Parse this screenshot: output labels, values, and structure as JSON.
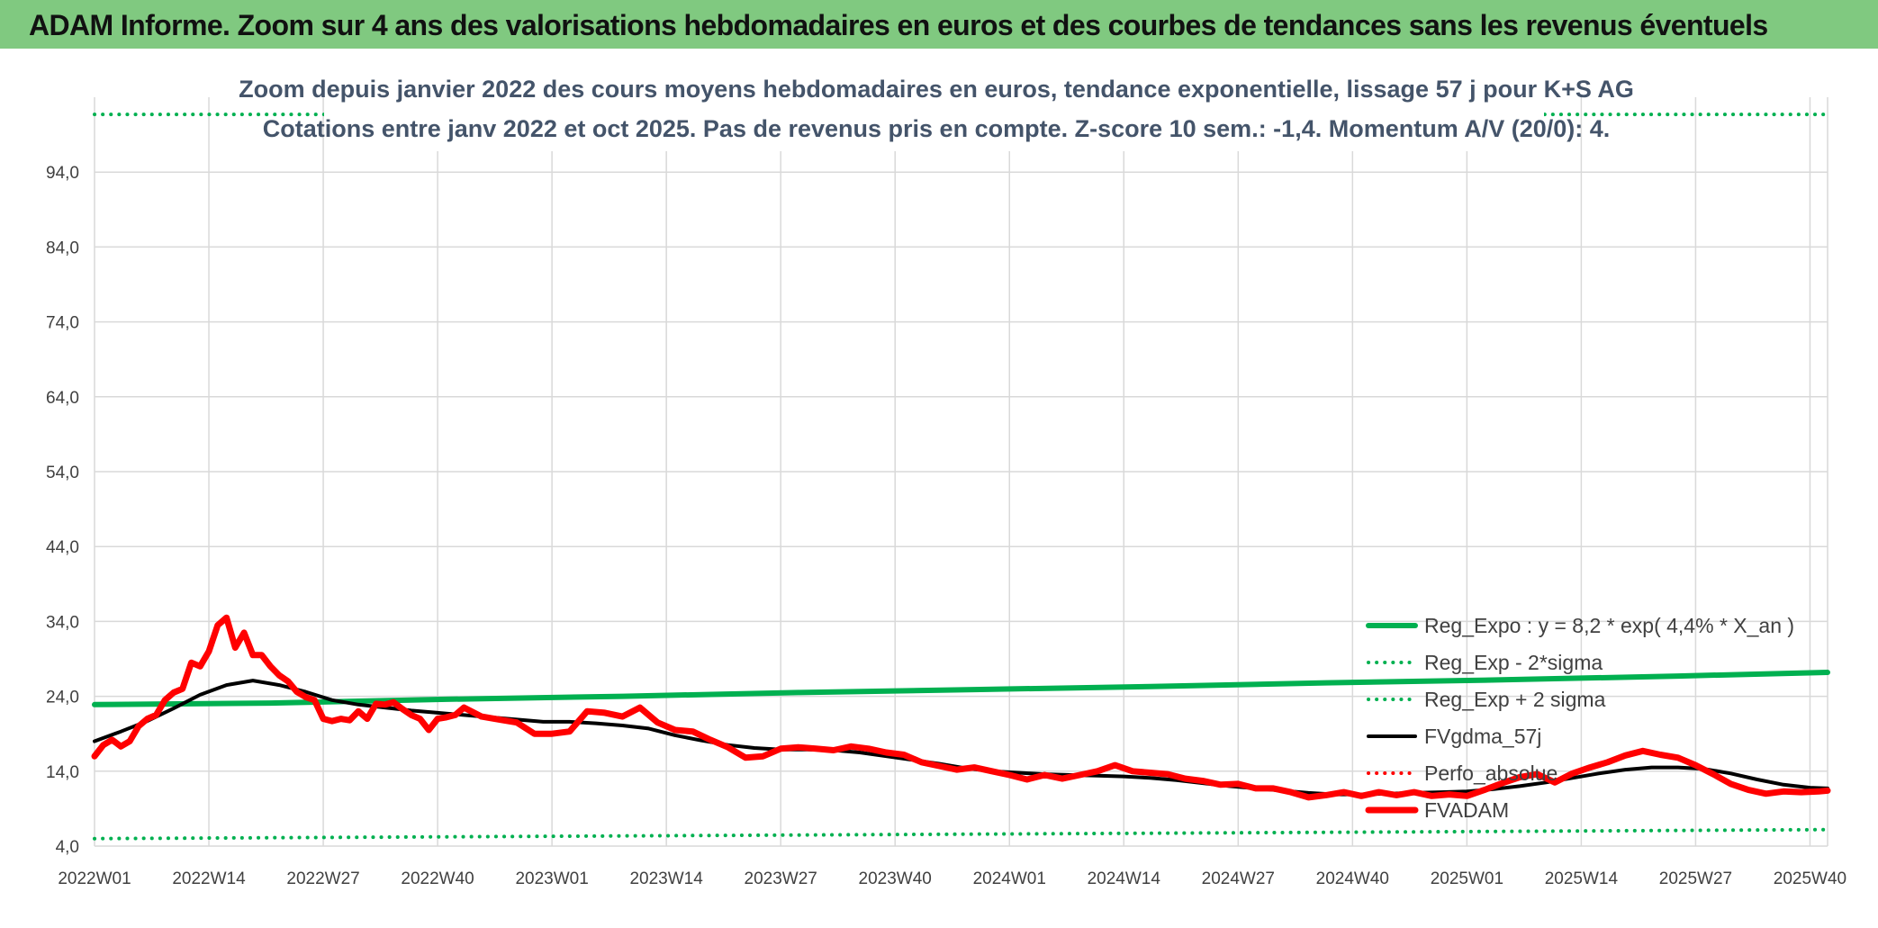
{
  "header": {
    "title": "ADAM Informe. Zoom sur 4 ans des valorisations hebdomadaires en euros et des courbes de tendances sans les revenus éventuels"
  },
  "colors": {
    "header_bg": "#80c980",
    "trend": "#00b050",
    "fvgdma": "#000000",
    "fvadam": "#ff0000",
    "perfo": "#ff0000",
    "grid": "#d9d9d9",
    "title_text": "#44546a"
  },
  "chart_data": {
    "type": "line",
    "title_line1": "Zoom depuis janvier 2022 des cours moyens hebdomadaires en euros, tendance exponentielle, lissage 57 j pour K+S AG",
    "title_line2": "Cotations entre janv 2022 et oct 2025. Pas de revenus pris en compte. Z-score 10 sem.: -1,4. Momentum A/V (20/0): 4.",
    "xlabel": "",
    "ylabel": "",
    "ylim": [
      4,
      104
    ],
    "yticks": [
      "94,0",
      "84,0",
      "74,0",
      "64,0",
      "54,0",
      "44,0",
      "34,0",
      "24,0",
      "14,0",
      "4,0"
    ],
    "ytick_values": [
      94,
      84,
      74,
      64,
      54,
      44,
      34,
      24,
      14,
      4
    ],
    "x_week_range": [
      0,
      197
    ],
    "xticks": [
      {
        "label": "2022W01",
        "week": 0
      },
      {
        "label": "2022W14",
        "week": 13
      },
      {
        "label": "2022W27",
        "week": 26
      },
      {
        "label": "2022W40",
        "week": 39
      },
      {
        "label": "2023W01",
        "week": 52
      },
      {
        "label": "2023W14",
        "week": 65
      },
      {
        "label": "2023W27",
        "week": 78
      },
      {
        "label": "2023W40",
        "week": 91
      },
      {
        "label": "2024W01",
        "week": 104
      },
      {
        "label": "2024W14",
        "week": 117
      },
      {
        "label": "2024W27",
        "week": 130
      },
      {
        "label": "2024W40",
        "week": 143
      },
      {
        "label": "2025W01",
        "week": 156
      },
      {
        "label": "2025W14",
        "week": 169
      },
      {
        "label": "2025W27",
        "week": 182
      },
      {
        "label": "2025W40",
        "week": 195
      }
    ],
    "series": [
      {
        "name": "Reg_Expo : y = 8,2 * exp( 4,4% *  X_an )",
        "style": "solid-thick",
        "color": "#00b050",
        "x": [
          0,
          20,
          40,
          60,
          80,
          100,
          120,
          140,
          160,
          180,
          197
        ],
        "values": [
          22.9,
          23.1,
          23.6,
          24.0,
          24.5,
          24.9,
          25.3,
          25.8,
          26.2,
          26.7,
          27.2
        ]
      },
      {
        "name": "Reg_Exp - 2*sigma",
        "style": "dotted",
        "color": "#00b050",
        "x": [
          0,
          50,
          100,
          150,
          197
        ],
        "values": [
          5.0,
          5.3,
          5.6,
          5.9,
          6.2
        ]
      },
      {
        "name": "Reg_Exp + 2 sigma",
        "style": "dotted",
        "color": "#00b050",
        "x": [
          0,
          197
        ],
        "values": [
          101.7,
          101.7
        ]
      },
      {
        "name": "FVgdma_57j",
        "style": "solid",
        "color": "#000000",
        "x": [
          0,
          3,
          6,
          9,
          12,
          15,
          18,
          21,
          24,
          27,
          30,
          33,
          36,
          39,
          42,
          45,
          48,
          51,
          54,
          57,
          60,
          63,
          66,
          69,
          72,
          75,
          78,
          81,
          84,
          87,
          90,
          93,
          96,
          99,
          102,
          105,
          108,
          111,
          114,
          117,
          120,
          123,
          126,
          129,
          132,
          135,
          138,
          141,
          144,
          147,
          150,
          153,
          156,
          159,
          162,
          165,
          168,
          171,
          174,
          177,
          180,
          183,
          186,
          189,
          192,
          195,
          197
        ],
        "values": [
          18.0,
          19.3,
          20.7,
          22.4,
          24.2,
          25.5,
          26.1,
          25.5,
          24.6,
          23.5,
          22.9,
          22.5,
          22.1,
          21.8,
          21.5,
          21.2,
          20.9,
          20.6,
          20.6,
          20.4,
          20.1,
          19.7,
          18.8,
          18.1,
          17.5,
          17.1,
          16.9,
          16.9,
          16.8,
          16.5,
          16.0,
          15.5,
          15.0,
          14.4,
          14.0,
          13.8,
          13.6,
          13.5,
          13.4,
          13.3,
          13.1,
          12.8,
          12.4,
          12.0,
          11.7,
          11.4,
          11.1,
          10.9,
          10.9,
          11.0,
          11.1,
          11.2,
          11.3,
          11.6,
          12.0,
          12.5,
          13.1,
          13.7,
          14.2,
          14.5,
          14.5,
          14.3,
          13.7,
          12.9,
          12.2,
          11.8,
          11.7
        ]
      },
      {
        "name": "Perfo_absolue",
        "style": "dotted",
        "color": "#ff0000",
        "x": [],
        "values": []
      },
      {
        "name": "FVADAM",
        "style": "solid-thick",
        "color": "#ff0000",
        "x": [
          0,
          1,
          2,
          3,
          4,
          5,
          6,
          7,
          8,
          9,
          10,
          11,
          12,
          13,
          14,
          15,
          16,
          17,
          18,
          19,
          20,
          21,
          22,
          23,
          24,
          25,
          26,
          27,
          28,
          29,
          30,
          31,
          32,
          33,
          34,
          35,
          36,
          37,
          38,
          39,
          40,
          41,
          42,
          44,
          46,
          48,
          50,
          52,
          54,
          56,
          58,
          60,
          62,
          64,
          66,
          68,
          70,
          72,
          74,
          76,
          78,
          80,
          82,
          84,
          86,
          88,
          90,
          92,
          94,
          96,
          98,
          100,
          102,
          104,
          106,
          108,
          110,
          112,
          114,
          116,
          118,
          120,
          122,
          124,
          126,
          128,
          130,
          132,
          134,
          136,
          138,
          140,
          142,
          144,
          146,
          148,
          150,
          152,
          154,
          156,
          158,
          160,
          162,
          164,
          166,
          168,
          170,
          172,
          174,
          176,
          178,
          180,
          182,
          184,
          186,
          188,
          190,
          192,
          194,
          196,
          197
        ],
        "values": [
          16.0,
          17.5,
          18.2,
          17.3,
          18.0,
          20.0,
          21.0,
          21.5,
          23.5,
          24.5,
          25.0,
          28.5,
          28.0,
          30.0,
          33.5,
          34.5,
          30.5,
          32.5,
          29.5,
          29.5,
          28.0,
          26.8,
          26.0,
          24.6,
          23.9,
          23.5,
          21.0,
          20.7,
          21.0,
          20.8,
          22.0,
          21.0,
          23.0,
          22.9,
          23.2,
          22.3,
          21.5,
          21.0,
          19.5,
          21.0,
          21.2,
          21.5,
          22.5,
          21.3,
          20.9,
          20.5,
          19.0,
          19.0,
          19.3,
          22.0,
          21.8,
          21.3,
          22.5,
          20.5,
          19.5,
          19.3,
          18.2,
          17.2,
          15.8,
          16.0,
          17.0,
          17.2,
          17.0,
          16.8,
          17.3,
          17.0,
          16.5,
          16.2,
          15.2,
          14.7,
          14.2,
          14.5,
          14.0,
          13.5,
          12.9,
          13.5,
          13.0,
          13.5,
          14.0,
          14.8,
          14.0,
          13.8,
          13.6,
          13.0,
          12.7,
          12.2,
          12.3,
          11.7,
          11.7,
          11.2,
          10.5,
          10.8,
          11.2,
          10.7,
          11.2,
          10.8,
          11.2,
          10.7,
          10.9,
          10.7,
          11.5,
          12.4,
          13.2,
          13.6,
          12.5,
          13.7,
          14.5,
          15.2,
          16.1,
          16.7,
          16.2,
          15.8,
          14.8,
          13.6,
          12.3,
          11.5,
          11.0,
          11.3,
          11.2,
          11.3,
          11.4
        ]
      }
    ],
    "legend": [
      {
        "label": "Reg_Expo : y = 8,2 * exp( 4,4% *  X_an )",
        "style": "solid-thick",
        "color": "#00b050"
      },
      {
        "label": "Reg_Exp - 2*sigma",
        "style": "dotted",
        "color": "#00b050"
      },
      {
        "label": "Reg_Exp + 2 sigma",
        "style": "dotted",
        "color": "#00b050"
      },
      {
        "label": "FVgdma_57j",
        "style": "solid",
        "color": "#000000"
      },
      {
        "label": "Perfo_absolue",
        "style": "dotted",
        "color": "#ff0000"
      },
      {
        "label": "FVADAM",
        "style": "solid-thick",
        "color": "#ff0000"
      }
    ],
    "legend_position": "bottom-right",
    "grid": true
  }
}
